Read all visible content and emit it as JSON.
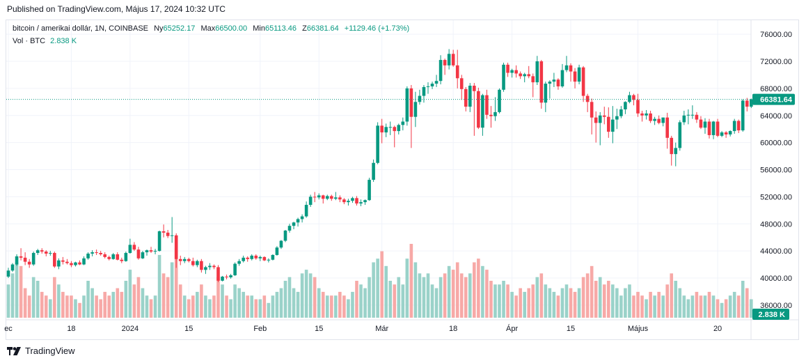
{
  "header": {
    "published": "Published on TradingView.com, Május 17, 2024 10:32 UTC"
  },
  "legend": {
    "symbol": "bitcoin / amerikai dollár, 1N, COINBASE",
    "o_label": "Ny",
    "o_value": "65252.17",
    "h_label": "Max",
    "h_value": "66500.00",
    "l_label": "Min",
    "l_value": "65113.46",
    "c_label": "Z",
    "c_value": "66381.64",
    "change": "+1129.46 (+1.73%)",
    "vol_label": "Vol · BTC",
    "vol_value": "2.838 K"
  },
  "footer": {
    "brand": "TradingView"
  },
  "colors": {
    "up": "#089981",
    "down": "#f23645",
    "vol_up": "#9ad2c9",
    "vol_down": "#f7a9a7",
    "grid": "#f0f3fa"
  },
  "chart_data": {
    "type": "candlestick",
    "title": "",
    "ylim": [
      34000,
      78000
    ],
    "y_ticks": [
      36000,
      40000,
      44000,
      48000,
      52000,
      56000,
      60000,
      64000,
      68000,
      72000,
      76000
    ],
    "y_tick_labels": [
      "36000.00",
      "40000.00",
      "44000.00",
      "48000.00",
      "52000.00",
      "56000.00",
      "60000.00",
      "64000.00",
      "68000.00",
      "72000.00",
      "76000.00"
    ],
    "last_price_label": "66381.64",
    "volume_label": "2.838 K",
    "x_ticks": [
      {
        "label": "ec",
        "day": 0
      },
      {
        "label": "18",
        "day": 15
      },
      {
        "label": "2024",
        "day": 29
      },
      {
        "label": "15",
        "day": 43
      },
      {
        "label": "Feb",
        "day": 60
      },
      {
        "label": "15",
        "day": 74
      },
      {
        "label": "Már",
        "day": 89
      },
      {
        "label": "18",
        "day": 106
      },
      {
        "label": "Ápr",
        "day": 120
      },
      {
        "label": "15",
        "day": 134
      },
      {
        "label": "Május",
        "day": 150
      },
      {
        "label": "20",
        "day": 169
      }
    ],
    "x_day_count": 172,
    "candles": [
      [
        40200,
        41500,
        40000,
        41100,
        0.45
      ],
      [
        41100,
        42200,
        40900,
        42000,
        0.6
      ],
      [
        42000,
        43500,
        41800,
        43200,
        0.75
      ],
      [
        43200,
        44400,
        42600,
        43000,
        0.7
      ],
      [
        43000,
        43800,
        41900,
        42400,
        0.4
      ],
      [
        42400,
        42800,
        41500,
        42000,
        0.3
      ],
      [
        42000,
        43900,
        41800,
        43700,
        0.55
      ],
      [
        43700,
        44300,
        43400,
        44100,
        0.5
      ],
      [
        44100,
        44400,
        43600,
        43900,
        0.35
      ],
      [
        43900,
        44100,
        43200,
        43600,
        0.3
      ],
      [
        43600,
        44000,
        43300,
        43700,
        0.25
      ],
      [
        43700,
        43900,
        41500,
        41700,
        0.55
      ],
      [
        41700,
        42900,
        41300,
        42600,
        0.45
      ],
      [
        42600,
        43100,
        42000,
        42400,
        0.35
      ],
      [
        42400,
        42800,
        42000,
        42200,
        0.3
      ],
      [
        42200,
        42500,
        41600,
        41900,
        0.3
      ],
      [
        41900,
        42400,
        41700,
        42300,
        0.25
      ],
      [
        42300,
        42600,
        41900,
        42000,
        0.2
      ],
      [
        42000,
        43200,
        41900,
        42900,
        0.3
      ],
      [
        42900,
        43800,
        42700,
        43600,
        0.5
      ],
      [
        43600,
        44100,
        43200,
        43800,
        0.4
      ],
      [
        43800,
        44200,
        43400,
        43700,
        0.3
      ],
      [
        43700,
        44000,
        43300,
        43500,
        0.25
      ],
      [
        43500,
        43800,
        42900,
        43100,
        0.35
      ],
      [
        43100,
        43300,
        42600,
        42800,
        0.3
      ],
      [
        42800,
        43700,
        42700,
        43500,
        0.35
      ],
      [
        43500,
        43800,
        42600,
        42700,
        0.4
      ],
      [
        42700,
        43000,
        42200,
        42500,
        0.35
      ],
      [
        42500,
        43900,
        42400,
        43700,
        0.5
      ],
      [
        43700,
        45800,
        43600,
        44900,
        0.65
      ],
      [
        44900,
        45300,
        44000,
        44200,
        0.45
      ],
      [
        44200,
        44600,
        42700,
        42900,
        0.55
      ],
      [
        42900,
        44000,
        42800,
        43800,
        0.4
      ],
      [
        43800,
        44200,
        43300,
        44100,
        0.3
      ],
      [
        44100,
        44600,
        43700,
        43900,
        0.25
      ],
      [
        43900,
        44300,
        43500,
        44000,
        0.3
      ],
      [
        44000,
        47000,
        43900,
        46900,
        0.85
      ],
      [
        46900,
        47900,
        46000,
        46700,
        0.6
      ],
      [
        46700,
        47100,
        45900,
        46200,
        0.55
      ],
      [
        46200,
        49000,
        45200,
        46300,
        0.75
      ],
      [
        46300,
        46600,
        41500,
        42800,
        0.95
      ],
      [
        42800,
        43300,
        41900,
        42500,
        0.45
      ],
      [
        42500,
        43100,
        42200,
        42800,
        0.3
      ],
      [
        42800,
        43000,
        42300,
        42500,
        0.25
      ],
      [
        42500,
        43000,
        41700,
        41900,
        0.3
      ],
      [
        41900,
        42700,
        41600,
        42500,
        0.35
      ],
      [
        42500,
        42800,
        40800,
        41200,
        0.45
      ],
      [
        41200,
        41800,
        40600,
        41600,
        0.3
      ],
      [
        41600,
        42200,
        41200,
        41800,
        0.25
      ],
      [
        41800,
        42000,
        41300,
        41600,
        0.3
      ],
      [
        41600,
        41900,
        39400,
        39600,
        0.55
      ],
      [
        39600,
        40300,
        39500,
        40200,
        0.45
      ],
      [
        40200,
        40500,
        39800,
        40100,
        0.3
      ],
      [
        40100,
        40600,
        39900,
        40400,
        0.25
      ],
      [
        40400,
        42300,
        40300,
        42100,
        0.45
      ],
      [
        42100,
        42800,
        41800,
        42500,
        0.4
      ],
      [
        42500,
        43300,
        42300,
        43000,
        0.35
      ],
      [
        43000,
        43200,
        42400,
        42800,
        0.3
      ],
      [
        42800,
        43500,
        42600,
        43300,
        0.3
      ],
      [
        43300,
        43500,
        42700,
        42900,
        0.25
      ],
      [
        42900,
        43300,
        42500,
        43100,
        0.25
      ],
      [
        43100,
        43200,
        42500,
        42600,
        0.3
      ],
      [
        42600,
        42900,
        42300,
        42700,
        0.2
      ],
      [
        42700,
        43500,
        42600,
        43400,
        0.3
      ],
      [
        43400,
        44700,
        43300,
        44500,
        0.35
      ],
      [
        44500,
        45600,
        44300,
        45500,
        0.4
      ],
      [
        45500,
        47100,
        45300,
        47000,
        0.5
      ],
      [
        47000,
        48000,
        46700,
        47700,
        0.55
      ],
      [
        47700,
        48300,
        47200,
        48200,
        0.4
      ],
      [
        48200,
        48900,
        47600,
        48700,
        0.35
      ],
      [
        48700,
        49400,
        48200,
        49100,
        0.6
      ],
      [
        49100,
        51300,
        48900,
        50800,
        0.65
      ],
      [
        50800,
        52300,
        50500,
        52000,
        0.6
      ],
      [
        52000,
        52700,
        51200,
        51900,
        0.55
      ],
      [
        51900,
        52500,
        51600,
        52200,
        0.4
      ],
      [
        52200,
        52300,
        51000,
        51700,
        0.35
      ],
      [
        51700,
        52300,
        51500,
        52100,
        0.3
      ],
      [
        52100,
        52300,
        51400,
        51700,
        0.3
      ],
      [
        51700,
        52700,
        51500,
        51900,
        0.3
      ],
      [
        51900,
        52200,
        51200,
        51600,
        0.35
      ],
      [
        51600,
        51800,
        50900,
        51200,
        0.3
      ],
      [
        51200,
        51700,
        50700,
        51400,
        0.25
      ],
      [
        51400,
        52000,
        51100,
        51800,
        0.35
      ],
      [
        51800,
        52100,
        50700,
        51000,
        0.5
      ],
      [
        51000,
        51600,
        50600,
        51200,
        0.45
      ],
      [
        51200,
        51600,
        50800,
        51500,
        0.4
      ],
      [
        51500,
        54800,
        51400,
        54500,
        0.55
      ],
      [
        54500,
        57500,
        54200,
        57000,
        0.75
      ],
      [
        57000,
        63000,
        56800,
        62500,
        0.8
      ],
      [
        62500,
        63500,
        59900,
        61500,
        0.9
      ],
      [
        61500,
        62800,
        60800,
        62300,
        0.7
      ],
      [
        62300,
        63100,
        61100,
        62300,
        0.5
      ],
      [
        62300,
        62500,
        59300,
        61700,
        0.45
      ],
      [
        61700,
        62800,
        61200,
        62600,
        0.55
      ],
      [
        62600,
        63700,
        61800,
        63100,
        0.45
      ],
      [
        63100,
        68300,
        62500,
        68000,
        0.8
      ],
      [
        68000,
        68500,
        59200,
        63800,
        1.0
      ],
      [
        63800,
        67500,
        62300,
        66000,
        0.75
      ],
      [
        66000,
        67800,
        65600,
        66900,
        0.6
      ],
      [
        66900,
        68500,
        65900,
        68200,
        0.55
      ],
      [
        68200,
        68900,
        67200,
        68300,
        0.6
      ],
      [
        68300,
        69000,
        67900,
        68700,
        0.45
      ],
      [
        68700,
        70000,
        68200,
        69100,
        0.4
      ],
      [
        69100,
        72900,
        68600,
        72200,
        0.55
      ],
      [
        72200,
        72400,
        70000,
        71400,
        0.6
      ],
      [
        71400,
        73800,
        70800,
        73100,
        0.7
      ],
      [
        73100,
        73700,
        71200,
        71400,
        0.65
      ],
      [
        71400,
        73700,
        68000,
        69500,
        0.75
      ],
      [
        69500,
        70000,
        66300,
        67900,
        0.6
      ],
      [
        67900,
        68200,
        64600,
        65300,
        0.55
      ],
      [
        65300,
        68800,
        64500,
        68400,
        0.6
      ],
      [
        68400,
        68800,
        61000,
        67600,
        0.75
      ],
      [
        67600,
        68100,
        62000,
        62200,
        0.8
      ],
      [
        62200,
        67200,
        61000,
        67000,
        0.7
      ],
      [
        67000,
        67800,
        63500,
        64100,
        0.65
      ],
      [
        64100,
        65400,
        62200,
        63900,
        0.5
      ],
      [
        63900,
        66700,
        63200,
        64500,
        0.45
      ],
      [
        64500,
        68000,
        64300,
        67800,
        0.45
      ],
      [
        67800,
        71800,
        67500,
        71500,
        0.5
      ],
      [
        71500,
        71800,
        69700,
        70300,
        0.45
      ],
      [
        70300,
        70900,
        69600,
        70700,
        0.35
      ],
      [
        70700,
        71400,
        69600,
        70200,
        0.3
      ],
      [
        70200,
        70500,
        69400,
        69800,
        0.4
      ],
      [
        69800,
        70300,
        68900,
        70100,
        0.35
      ],
      [
        70100,
        71300,
        69500,
        69800,
        0.4
      ],
      [
        69800,
        70200,
        66700,
        68900,
        0.45
      ],
      [
        68900,
        72800,
        68500,
        72000,
        0.55
      ],
      [
        72000,
        72200,
        65000,
        65900,
        0.6
      ],
      [
        65900,
        69000,
        64500,
        68700,
        0.45
      ],
      [
        68700,
        69200,
        66500,
        69000,
        0.4
      ],
      [
        69000,
        70300,
        68200,
        69300,
        0.35
      ],
      [
        69300,
        69500,
        67800,
        68300,
        0.3
      ],
      [
        68300,
        71600,
        68100,
        70700,
        0.4
      ],
      [
        70700,
        72800,
        70400,
        71400,
        0.45
      ],
      [
        71400,
        71700,
        69000,
        70500,
        0.4
      ],
      [
        70500,
        71000,
        68000,
        69000,
        0.35
      ],
      [
        69000,
        71500,
        68600,
        71100,
        0.4
      ],
      [
        71100,
        71300,
        66000,
        66900,
        0.55
      ],
      [
        66900,
        67200,
        64500,
        66000,
        0.6
      ],
      [
        66000,
        66500,
        61200,
        63700,
        0.7
      ],
      [
        63700,
        64600,
        60000,
        62900,
        0.5
      ],
      [
        62900,
        64500,
        59600,
        64000,
        0.55
      ],
      [
        64000,
        65300,
        62700,
        63800,
        0.45
      ],
      [
        63800,
        65200,
        60700,
        61600,
        0.5
      ],
      [
        61600,
        65400,
        59900,
        63400,
        0.45
      ],
      [
        63400,
        65000,
        62000,
        63900,
        0.4
      ],
      [
        63900,
        65400,
        63600,
        64900,
        0.3
      ],
      [
        64900,
        66100,
        64200,
        66000,
        0.4
      ],
      [
        66000,
        67500,
        65800,
        67000,
        0.45
      ],
      [
        67000,
        67200,
        65500,
        66300,
        0.3
      ],
      [
        66300,
        67200,
        63800,
        64300,
        0.35
      ],
      [
        64300,
        64700,
        63100,
        64000,
        0.3
      ],
      [
        64000,
        64800,
        63400,
        64300,
        0.25
      ],
      [
        64300,
        64700,
        62900,
        63200,
        0.35
      ],
      [
        63200,
        63800,
        62600,
        63500,
        0.3
      ],
      [
        63500,
        64000,
        62700,
        62900,
        0.35
      ],
      [
        62900,
        63700,
        62400,
        63700,
        0.3
      ],
      [
        63700,
        64400,
        59100,
        60700,
        0.45
      ],
      [
        60700,
        61000,
        56600,
        58300,
        0.6
      ],
      [
        58300,
        60000,
        56500,
        59200,
        0.5
      ],
      [
        59200,
        63300,
        58800,
        63000,
        0.4
      ],
      [
        63000,
        64700,
        62600,
        64000,
        0.3
      ],
      [
        64000,
        64900,
        62700,
        64100,
        0.25
      ],
      [
        64100,
        65500,
        63500,
        64100,
        0.3
      ],
      [
        64100,
        64500,
        62900,
        63400,
        0.35
      ],
      [
        63400,
        63900,
        62000,
        62200,
        0.3
      ],
      [
        62200,
        63600,
        61300,
        63100,
        0.3
      ],
      [
        63100,
        63500,
        60600,
        61100,
        0.35
      ],
      [
        61100,
        63200,
        60500,
        63100,
        0.3
      ],
      [
        63100,
        63500,
        60800,
        61000,
        0.25
      ],
      [
        61000,
        61700,
        60800,
        61500,
        0.2
      ],
      [
        61500,
        61700,
        60700,
        61200,
        0.25
      ],
      [
        61200,
        61800,
        60900,
        61700,
        0.3
      ],
      [
        61700,
        63500,
        61300,
        63200,
        0.35
      ],
      [
        63200,
        63400,
        61400,
        61800,
        0.3
      ],
      [
        61800,
        66400,
        61600,
        66200,
        0.5
      ],
      [
        66200,
        66600,
        64600,
        65300,
        0.4
      ],
      [
        65300,
        66500,
        65100,
        66400,
        0.25
      ]
    ]
  }
}
